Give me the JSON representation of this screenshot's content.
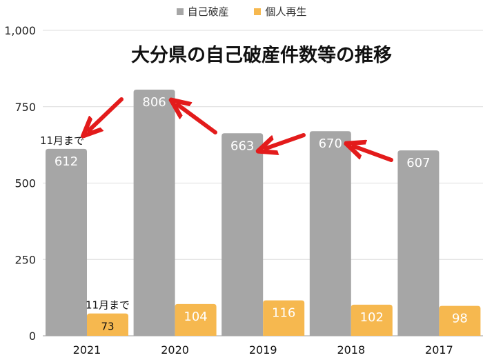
{
  "chart_data": {
    "type": "bar",
    "title": "大分県の自己破産件数等の推移",
    "categories": [
      "2021",
      "2020",
      "2019",
      "2018",
      "2017"
    ],
    "series": [
      {
        "name": "自己破産",
        "values": [
          612,
          806,
          663,
          670,
          607
        ],
        "color": "#a6a6a6"
      },
      {
        "name": "個人再生",
        "values": [
          73,
          104,
          116,
          102,
          98
        ],
        "color": "#f6b84f"
      }
    ],
    "y_ticks": [
      "0",
      "250",
      "500",
      "750",
      "1,000"
    ],
    "ylim": [
      0,
      1000
    ],
    "grid": true,
    "legend_position": "top-center",
    "annotations": [
      {
        "text": "11月まで",
        "category": "2021",
        "series": "自己破産"
      },
      {
        "text": "11月まで",
        "category": "2021",
        "series": "個人再生"
      }
    ],
    "arrows": [
      {
        "color": "#e31b1b",
        "points_to": "2021 自己破産"
      },
      {
        "color": "#e31b1b",
        "points_to": "2020 自己破産"
      },
      {
        "color": "#e31b1b",
        "points_to": "2019 自己破産"
      },
      {
        "color": "#e31b1b",
        "points_to": "2018 自己破産"
      }
    ]
  }
}
